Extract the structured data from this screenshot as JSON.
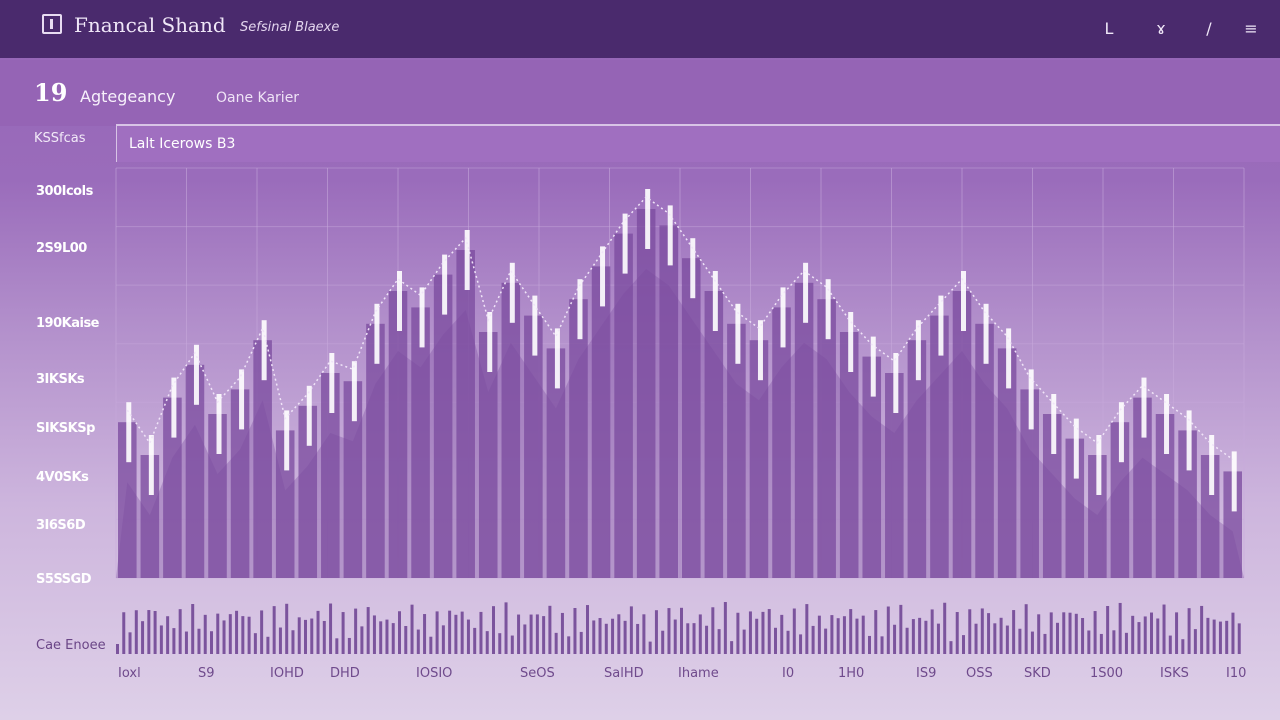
{
  "header": {
    "title": "Fnancal Shand",
    "subtitle": "Sefsinal Blaexe",
    "icons": [
      "l-icon",
      "pen-icon",
      "slash-icon",
      "menu-icon"
    ],
    "icon_glyphs": [
      "L",
      "ɤ",
      "/",
      "≡"
    ]
  },
  "summary": {
    "value": "19",
    "label": "Agtegeancy",
    "secondary": "Oane Karier",
    "row_label": "KSSfcas"
  },
  "toolbar": {
    "text": "Lalt Icerows B3"
  },
  "colors": {
    "topbar": "#4a2a6d",
    "accent": "#9565b6",
    "candle": "#ffffff",
    "bar_dark": "#7a4a9e",
    "volume": "#6b3f91"
  },
  "chart_data": {
    "type": "bar",
    "y_tick_labels": [
      "300Icols",
      "2S9L00",
      "190Kaise",
      "3IKSKs",
      "SIKSKSp",
      "4V0SKs",
      "3I6S6D",
      "S5SSGD"
    ],
    "x_tick_labels": [
      "Ioxl",
      "S9",
      "IOHD",
      "DHD",
      "IOSIO",
      "SeOS",
      "SalHD",
      "Ihame",
      "I0",
      "1H0",
      "IS9",
      "OSS",
      "SKD",
      "1S00",
      "ISKS",
      "I10"
    ],
    "volume_label": "Cae Enoee",
    "grid": true,
    "series": [
      {
        "values": [
          38,
          30,
          44,
          52,
          40,
          46,
          58,
          36,
          42,
          50,
          48,
          62,
          70,
          66,
          74,
          80,
          60,
          72,
          64,
          56,
          68,
          76,
          84,
          90,
          86,
          78,
          70,
          62,
          58,
          66,
          72,
          68,
          60,
          54,
          50,
          58,
          64,
          70,
          62,
          56,
          46,
          40,
          34,
          30,
          38,
          44,
          40,
          36,
          30,
          26
        ]
      }
    ]
  }
}
